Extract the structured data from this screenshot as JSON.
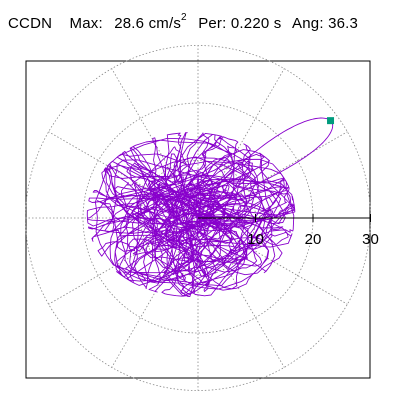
{
  "header": {
    "station": "CCDN",
    "max_label": "Max:",
    "max_value": "28.6",
    "max_unit": "cm/s",
    "max_exp": "2",
    "per_label": "Per:",
    "per_value": "0.220",
    "per_unit": "s",
    "ang_label": "Ang:",
    "ang_value": "36.3"
  },
  "chart_data": {
    "type": "polar-orbit",
    "title": "",
    "radial_ticks": [
      10,
      20,
      30
    ],
    "radial_tick_labels": [
      "10",
      "20",
      "30"
    ],
    "r_max": 30,
    "grid": true,
    "grid_style": "dotted",
    "spoke_step_deg": 30,
    "max_amplitude": 28.6,
    "max_angle_deg": 36.3,
    "colors": {
      "trace": "#8800cc",
      "marker": "#009b7d",
      "axis": "#000000",
      "grid": "#888888"
    }
  }
}
